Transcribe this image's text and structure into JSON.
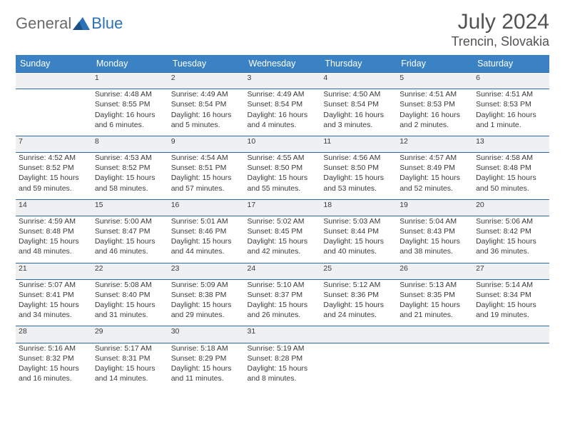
{
  "brand": {
    "general": "General",
    "blue": "Blue"
  },
  "title": "July 2024",
  "location": "Trencin, Slovakia",
  "colors": {
    "header_bg": "#3b82c4",
    "row_border": "#2d6aa3",
    "daynum_bg": "#eef0f2",
    "logo_blue": "#2a71b8",
    "logo_gray": "#6a6a6a"
  },
  "day_headers": [
    "Sunday",
    "Monday",
    "Tuesday",
    "Wednesday",
    "Thursday",
    "Friday",
    "Saturday"
  ],
  "weeks": [
    {
      "nums": [
        "",
        "1",
        "2",
        "3",
        "4",
        "5",
        "6"
      ],
      "cells": [
        null,
        {
          "sunrise": "Sunrise: 4:48 AM",
          "sunset": "Sunset: 8:55 PM",
          "d1": "Daylight: 16 hours",
          "d2": "and 6 minutes."
        },
        {
          "sunrise": "Sunrise: 4:49 AM",
          "sunset": "Sunset: 8:54 PM",
          "d1": "Daylight: 16 hours",
          "d2": "and 5 minutes."
        },
        {
          "sunrise": "Sunrise: 4:49 AM",
          "sunset": "Sunset: 8:54 PM",
          "d1": "Daylight: 16 hours",
          "d2": "and 4 minutes."
        },
        {
          "sunrise": "Sunrise: 4:50 AM",
          "sunset": "Sunset: 8:54 PM",
          "d1": "Daylight: 16 hours",
          "d2": "and 3 minutes."
        },
        {
          "sunrise": "Sunrise: 4:51 AM",
          "sunset": "Sunset: 8:53 PM",
          "d1": "Daylight: 16 hours",
          "d2": "and 2 minutes."
        },
        {
          "sunrise": "Sunrise: 4:51 AM",
          "sunset": "Sunset: 8:53 PM",
          "d1": "Daylight: 16 hours",
          "d2": "and 1 minute."
        }
      ]
    },
    {
      "nums": [
        "7",
        "8",
        "9",
        "10",
        "11",
        "12",
        "13"
      ],
      "cells": [
        {
          "sunrise": "Sunrise: 4:52 AM",
          "sunset": "Sunset: 8:52 PM",
          "d1": "Daylight: 15 hours",
          "d2": "and 59 minutes."
        },
        {
          "sunrise": "Sunrise: 4:53 AM",
          "sunset": "Sunset: 8:52 PM",
          "d1": "Daylight: 15 hours",
          "d2": "and 58 minutes."
        },
        {
          "sunrise": "Sunrise: 4:54 AM",
          "sunset": "Sunset: 8:51 PM",
          "d1": "Daylight: 15 hours",
          "d2": "and 57 minutes."
        },
        {
          "sunrise": "Sunrise: 4:55 AM",
          "sunset": "Sunset: 8:50 PM",
          "d1": "Daylight: 15 hours",
          "d2": "and 55 minutes."
        },
        {
          "sunrise": "Sunrise: 4:56 AM",
          "sunset": "Sunset: 8:50 PM",
          "d1": "Daylight: 15 hours",
          "d2": "and 53 minutes."
        },
        {
          "sunrise": "Sunrise: 4:57 AM",
          "sunset": "Sunset: 8:49 PM",
          "d1": "Daylight: 15 hours",
          "d2": "and 52 minutes."
        },
        {
          "sunrise": "Sunrise: 4:58 AM",
          "sunset": "Sunset: 8:48 PM",
          "d1": "Daylight: 15 hours",
          "d2": "and 50 minutes."
        }
      ]
    },
    {
      "nums": [
        "14",
        "15",
        "16",
        "17",
        "18",
        "19",
        "20"
      ],
      "cells": [
        {
          "sunrise": "Sunrise: 4:59 AM",
          "sunset": "Sunset: 8:48 PM",
          "d1": "Daylight: 15 hours",
          "d2": "and 48 minutes."
        },
        {
          "sunrise": "Sunrise: 5:00 AM",
          "sunset": "Sunset: 8:47 PM",
          "d1": "Daylight: 15 hours",
          "d2": "and 46 minutes."
        },
        {
          "sunrise": "Sunrise: 5:01 AM",
          "sunset": "Sunset: 8:46 PM",
          "d1": "Daylight: 15 hours",
          "d2": "and 44 minutes."
        },
        {
          "sunrise": "Sunrise: 5:02 AM",
          "sunset": "Sunset: 8:45 PM",
          "d1": "Daylight: 15 hours",
          "d2": "and 42 minutes."
        },
        {
          "sunrise": "Sunrise: 5:03 AM",
          "sunset": "Sunset: 8:44 PM",
          "d1": "Daylight: 15 hours",
          "d2": "and 40 minutes."
        },
        {
          "sunrise": "Sunrise: 5:04 AM",
          "sunset": "Sunset: 8:43 PM",
          "d1": "Daylight: 15 hours",
          "d2": "and 38 minutes."
        },
        {
          "sunrise": "Sunrise: 5:06 AM",
          "sunset": "Sunset: 8:42 PM",
          "d1": "Daylight: 15 hours",
          "d2": "and 36 minutes."
        }
      ]
    },
    {
      "nums": [
        "21",
        "22",
        "23",
        "24",
        "25",
        "26",
        "27"
      ],
      "cells": [
        {
          "sunrise": "Sunrise: 5:07 AM",
          "sunset": "Sunset: 8:41 PM",
          "d1": "Daylight: 15 hours",
          "d2": "and 34 minutes."
        },
        {
          "sunrise": "Sunrise: 5:08 AM",
          "sunset": "Sunset: 8:40 PM",
          "d1": "Daylight: 15 hours",
          "d2": "and 31 minutes."
        },
        {
          "sunrise": "Sunrise: 5:09 AM",
          "sunset": "Sunset: 8:38 PM",
          "d1": "Daylight: 15 hours",
          "d2": "and 29 minutes."
        },
        {
          "sunrise": "Sunrise: 5:10 AM",
          "sunset": "Sunset: 8:37 PM",
          "d1": "Daylight: 15 hours",
          "d2": "and 26 minutes."
        },
        {
          "sunrise": "Sunrise: 5:12 AM",
          "sunset": "Sunset: 8:36 PM",
          "d1": "Daylight: 15 hours",
          "d2": "and 24 minutes."
        },
        {
          "sunrise": "Sunrise: 5:13 AM",
          "sunset": "Sunset: 8:35 PM",
          "d1": "Daylight: 15 hours",
          "d2": "and 21 minutes."
        },
        {
          "sunrise": "Sunrise: 5:14 AM",
          "sunset": "Sunset: 8:34 PM",
          "d1": "Daylight: 15 hours",
          "d2": "and 19 minutes."
        }
      ]
    },
    {
      "nums": [
        "28",
        "29",
        "30",
        "31",
        "",
        "",
        ""
      ],
      "cells": [
        {
          "sunrise": "Sunrise: 5:16 AM",
          "sunset": "Sunset: 8:32 PM",
          "d1": "Daylight: 15 hours",
          "d2": "and 16 minutes."
        },
        {
          "sunrise": "Sunrise: 5:17 AM",
          "sunset": "Sunset: 8:31 PM",
          "d1": "Daylight: 15 hours",
          "d2": "and 14 minutes."
        },
        {
          "sunrise": "Sunrise: 5:18 AM",
          "sunset": "Sunset: 8:29 PM",
          "d1": "Daylight: 15 hours",
          "d2": "and 11 minutes."
        },
        {
          "sunrise": "Sunrise: 5:19 AM",
          "sunset": "Sunset: 8:28 PM",
          "d1": "Daylight: 15 hours",
          "d2": "and 8 minutes."
        },
        null,
        null,
        null
      ]
    }
  ]
}
